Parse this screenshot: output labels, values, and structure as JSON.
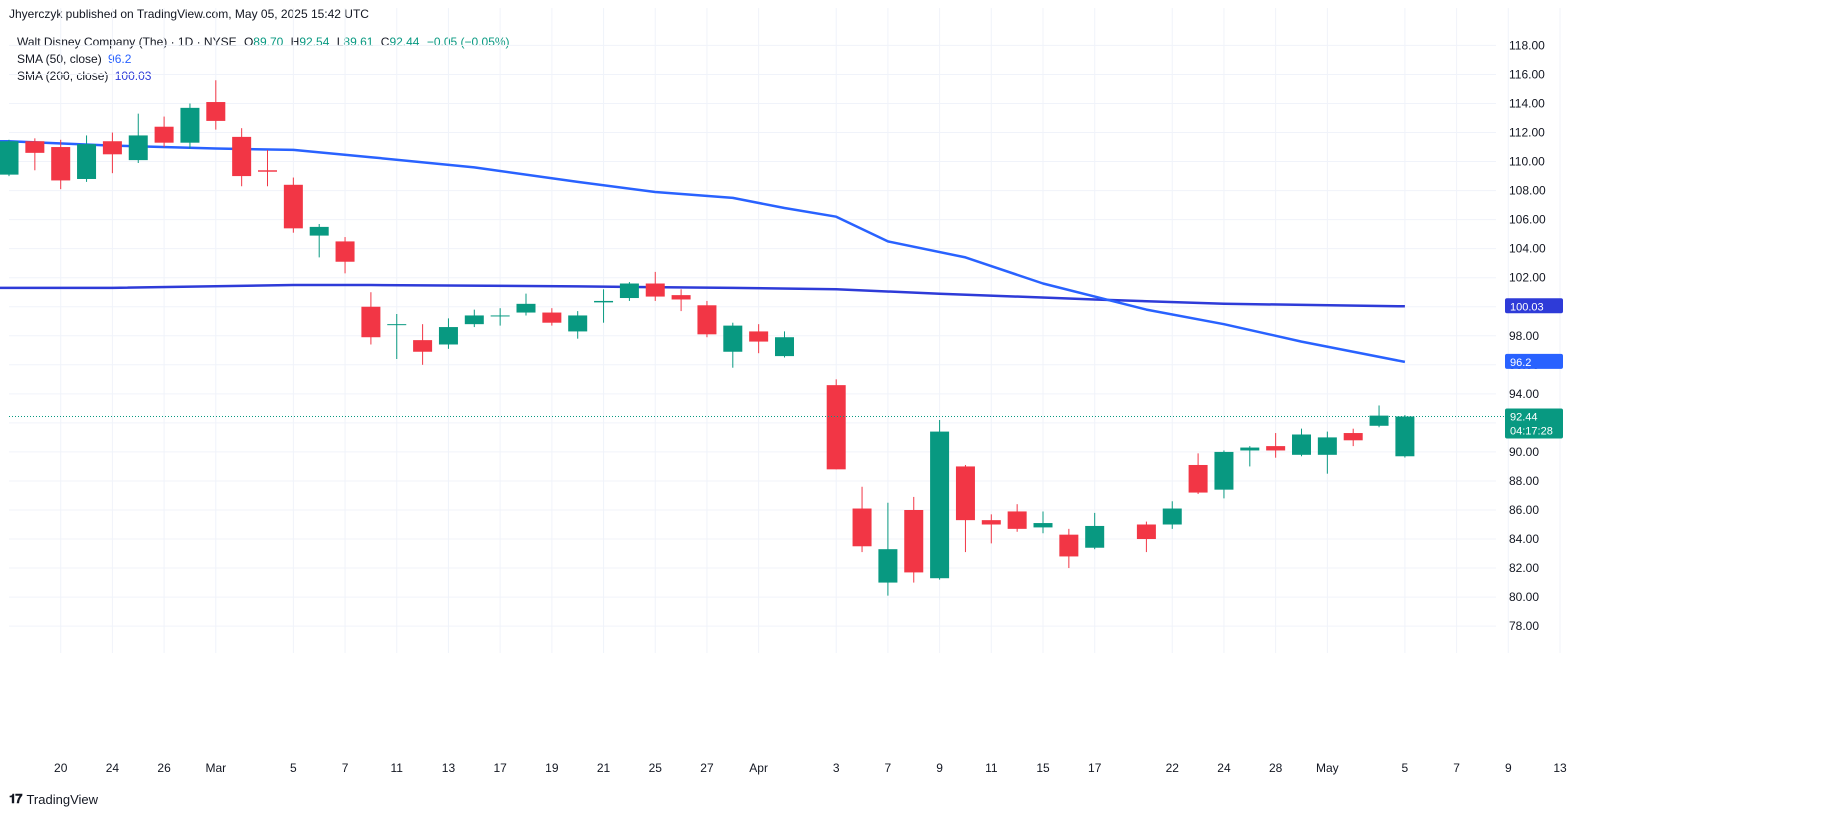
{
  "header": {
    "published_by": "Jhyerczyk published on TradingView.com, May 05, 2025 15:42 UTC"
  },
  "legend": {
    "symbol": "Walt Disney Company (The) · 1D · NYSE",
    "open_label": "O",
    "open": "89.70",
    "high_label": "H",
    "high": "92.54",
    "low_label": "L",
    "low": "89.61",
    "close_label": "C",
    "close": "92.44",
    "change": "−0.05 (−0.05%)",
    "sma50_label": "SMA (50, close)",
    "sma50_value": "96.2",
    "sma200_label": "SMA (200, close)",
    "sma200_value": "100.03"
  },
  "footer": {
    "brand": "TradingView",
    "brand_icon": "tradingview-logo-icon"
  },
  "colors": {
    "up": "#089981",
    "down": "#f23645",
    "sma50": "#2962ff",
    "sma200": "#2e3bd8",
    "grid": "#f0f3fa"
  },
  "chart_data": {
    "type": "candlestick",
    "title": "Walt Disney Company (The) · 1D · NYSE",
    "ylim": [
      76.7,
      119.2
    ],
    "y_ticks": [
      "78.00",
      "80.00",
      "82.00",
      "84.00",
      "86.00",
      "88.00",
      "90.00",
      "92.00",
      "94.00",
      "96.00",
      "98.00",
      "100.00",
      "102.00",
      "104.00",
      "106.00",
      "108.00",
      "110.00",
      "112.00",
      "114.00",
      "116.00",
      "118.00"
    ],
    "x_ticks": [
      {
        "date": "2025-02-20",
        "label": "20"
      },
      {
        "date": "2025-02-24",
        "label": "24"
      },
      {
        "date": "2025-02-26",
        "label": "26"
      },
      {
        "date": "2025-02-28",
        "label": "Mar"
      },
      {
        "date": "2025-03-05",
        "label": "5"
      },
      {
        "date": "2025-03-07",
        "label": "7"
      },
      {
        "date": "2025-03-11",
        "label": "11"
      },
      {
        "date": "2025-03-13",
        "label": "13"
      },
      {
        "date": "2025-03-17",
        "label": "17"
      },
      {
        "date": "2025-03-19",
        "label": "19"
      },
      {
        "date": "2025-03-21",
        "label": "21"
      },
      {
        "date": "2025-03-25",
        "label": "25"
      },
      {
        "date": "2025-03-27",
        "label": "27"
      },
      {
        "date": "2025-03-31",
        "label": "Apr"
      },
      {
        "date": "2025-04-03",
        "label": "3"
      },
      {
        "date": "2025-04-07",
        "label": "7"
      },
      {
        "date": "2025-04-09",
        "label": "9"
      },
      {
        "date": "2025-04-11",
        "label": "11"
      },
      {
        "date": "2025-04-15",
        "label": "15"
      },
      {
        "date": "2025-04-17",
        "label": "17"
      },
      {
        "date": "2025-04-22",
        "label": "22"
      },
      {
        "date": "2025-04-24",
        "label": "24"
      },
      {
        "date": "2025-04-28",
        "label": "28"
      },
      {
        "date": "2025-04-30",
        "label": "May"
      },
      {
        "date": "2025-05-05",
        "label": "5"
      },
      {
        "date": "2025-05-07",
        "label": "7"
      },
      {
        "date": "2025-05-09",
        "label": "9"
      },
      {
        "date": "2025-05-13",
        "label": "13"
      }
    ],
    "candles": [
      {
        "date": "2025-02-18",
        "o": 109.1,
        "h": 111.5,
        "l": 109.0,
        "c": 111.4
      },
      {
        "date": "2025-02-19",
        "o": 111.4,
        "h": 111.6,
        "l": 109.4,
        "c": 110.6
      },
      {
        "date": "2025-02-20",
        "o": 111.0,
        "h": 111.5,
        "l": 108.1,
        "c": 108.7
      },
      {
        "date": "2025-02-21",
        "o": 108.8,
        "h": 111.8,
        "l": 108.6,
        "c": 111.2
      },
      {
        "date": "2025-02-24",
        "o": 111.4,
        "h": 112.0,
        "l": 109.2,
        "c": 110.5
      },
      {
        "date": "2025-02-25",
        "o": 110.1,
        "h": 113.3,
        "l": 109.9,
        "c": 111.8
      },
      {
        "date": "2025-02-26",
        "o": 112.4,
        "h": 113.1,
        "l": 111.0,
        "c": 111.3
      },
      {
        "date": "2025-02-27",
        "o": 111.3,
        "h": 114.0,
        "l": 110.9,
        "c": 113.7
      },
      {
        "date": "2025-02-28",
        "o": 114.1,
        "h": 115.6,
        "l": 112.2,
        "c": 112.8
      },
      {
        "date": "2025-03-03",
        "o": 111.7,
        "h": 112.3,
        "l": 108.3,
        "c": 109.0
      },
      {
        "date": "2025-03-04",
        "o": 109.4,
        "h": 110.8,
        "l": 108.3,
        "c": 109.3
      },
      {
        "date": "2025-03-05",
        "o": 108.4,
        "h": 108.9,
        "l": 105.1,
        "c": 105.4
      },
      {
        "date": "2025-03-06",
        "o": 104.9,
        "h": 105.7,
        "l": 103.4,
        "c": 105.5
      },
      {
        "date": "2025-03-07",
        "o": 104.5,
        "h": 104.8,
        "l": 102.3,
        "c": 103.1
      },
      {
        "date": "2025-03-10",
        "o": 100.0,
        "h": 101.0,
        "l": 97.4,
        "c": 97.9
      },
      {
        "date": "2025-03-11",
        "o": 98.8,
        "h": 99.5,
        "l": 96.4,
        "c": 98.8
      },
      {
        "date": "2025-03-12",
        "o": 97.7,
        "h": 98.8,
        "l": 96.0,
        "c": 96.9
      },
      {
        "date": "2025-03-13",
        "o": 97.4,
        "h": 99.2,
        "l": 97.1,
        "c": 98.6
      },
      {
        "date": "2025-03-14",
        "o": 98.8,
        "h": 99.8,
        "l": 98.6,
        "c": 99.4
      },
      {
        "date": "2025-03-17",
        "o": 99.4,
        "h": 99.9,
        "l": 98.7,
        "c": 99.4
      },
      {
        "date": "2025-03-18",
        "o": 99.6,
        "h": 100.9,
        "l": 99.4,
        "c": 100.2
      },
      {
        "date": "2025-03-19",
        "o": 99.6,
        "h": 99.9,
        "l": 98.7,
        "c": 98.9
      },
      {
        "date": "2025-03-20",
        "o": 98.3,
        "h": 99.7,
        "l": 97.8,
        "c": 99.4
      },
      {
        "date": "2025-03-21",
        "o": 100.3,
        "h": 101.2,
        "l": 98.9,
        "c": 100.4
      },
      {
        "date": "2025-03-24",
        "o": 100.6,
        "h": 101.7,
        "l": 100.4,
        "c": 101.6
      },
      {
        "date": "2025-03-25",
        "o": 101.6,
        "h": 102.4,
        "l": 100.4,
        "c": 100.7
      },
      {
        "date": "2025-03-26",
        "o": 100.8,
        "h": 101.2,
        "l": 99.7,
        "c": 100.5
      },
      {
        "date": "2025-03-27",
        "o": 100.1,
        "h": 100.4,
        "l": 97.9,
        "c": 98.1
      },
      {
        "date": "2025-03-28",
        "o": 96.9,
        "h": 98.9,
        "l": 95.8,
        "c": 98.7
      },
      {
        "date": "2025-03-31",
        "o": 98.3,
        "h": 98.8,
        "l": 96.8,
        "c": 97.6
      },
      {
        "date": "2025-04-01",
        "o": 96.6,
        "h": 98.3,
        "l": 96.5,
        "c": 97.9
      },
      {
        "date": "2025-04-03",
        "o": 94.6,
        "h": 95.0,
        "l": 88.8,
        "c": 88.8
      },
      {
        "date": "2025-04-04",
        "o": 86.1,
        "h": 87.6,
        "l": 83.1,
        "c": 83.5
      },
      {
        "date": "2025-04-07",
        "o": 81.0,
        "h": 86.5,
        "l": 80.1,
        "c": 83.3
      },
      {
        "date": "2025-04-08",
        "o": 86.0,
        "h": 86.9,
        "l": 81.0,
        "c": 81.7
      },
      {
        "date": "2025-04-09",
        "o": 81.3,
        "h": 92.2,
        "l": 81.2,
        "c": 91.4
      },
      {
        "date": "2025-04-10",
        "o": 89.0,
        "h": 89.1,
        "l": 83.1,
        "c": 85.3
      },
      {
        "date": "2025-04-11",
        "o": 85.3,
        "h": 85.7,
        "l": 83.7,
        "c": 85.0
      },
      {
        "date": "2025-04-14",
        "o": 85.9,
        "h": 86.4,
        "l": 84.5,
        "c": 84.7
      },
      {
        "date": "2025-04-15",
        "o": 84.8,
        "h": 85.9,
        "l": 84.4,
        "c": 85.1
      },
      {
        "date": "2025-04-16",
        "o": 84.3,
        "h": 84.7,
        "l": 82.0,
        "c": 82.8
      },
      {
        "date": "2025-04-17",
        "o": 83.4,
        "h": 85.8,
        "l": 83.3,
        "c": 84.9
      },
      {
        "date": "2025-04-21",
        "o": 85.0,
        "h": 85.2,
        "l": 83.1,
        "c": 84.0
      },
      {
        "date": "2025-04-22",
        "o": 85.0,
        "h": 86.6,
        "l": 84.7,
        "c": 86.1
      },
      {
        "date": "2025-04-23",
        "o": 89.1,
        "h": 89.9,
        "l": 87.1,
        "c": 87.2
      },
      {
        "date": "2025-04-24",
        "o": 87.4,
        "h": 90.1,
        "l": 86.8,
        "c": 90.0
      },
      {
        "date": "2025-04-25",
        "o": 90.1,
        "h": 90.4,
        "l": 89.0,
        "c": 90.3
      },
      {
        "date": "2025-04-28",
        "o": 90.4,
        "h": 91.3,
        "l": 89.6,
        "c": 90.1
      },
      {
        "date": "2025-04-29",
        "o": 89.8,
        "h": 91.6,
        "l": 89.7,
        "c": 91.2
      },
      {
        "date": "2025-04-30",
        "o": 89.8,
        "h": 91.4,
        "l": 88.5,
        "c": 91.0
      },
      {
        "date": "2025-05-01",
        "o": 91.3,
        "h": 91.6,
        "l": 90.4,
        "c": 90.8
      },
      {
        "date": "2025-05-02",
        "o": 91.8,
        "h": 93.2,
        "l": 91.7,
        "c": 92.5
      },
      {
        "date": "2025-05-05",
        "o": 89.7,
        "h": 92.54,
        "l": 89.61,
        "c": 92.44
      }
    ],
    "sma50": [
      {
        "date": "2025-02-18",
        "v": 111.4
      },
      {
        "date": "2025-02-24",
        "v": 111.1
      },
      {
        "date": "2025-02-28",
        "v": 110.9
      },
      {
        "date": "2025-03-05",
        "v": 110.8
      },
      {
        "date": "2025-03-10",
        "v": 110.3
      },
      {
        "date": "2025-03-14",
        "v": 109.6
      },
      {
        "date": "2025-03-20",
        "v": 108.6
      },
      {
        "date": "2025-03-25",
        "v": 107.9
      },
      {
        "date": "2025-03-28",
        "v": 107.5
      },
      {
        "date": "2025-04-01",
        "v": 106.8
      },
      {
        "date": "2025-04-03",
        "v": 106.2
      },
      {
        "date": "2025-04-07",
        "v": 104.5
      },
      {
        "date": "2025-04-10",
        "v": 103.4
      },
      {
        "date": "2025-04-15",
        "v": 101.6
      },
      {
        "date": "2025-04-21",
        "v": 99.8
      },
      {
        "date": "2025-04-24",
        "v": 98.8
      },
      {
        "date": "2025-04-29",
        "v": 97.6
      },
      {
        "date": "2025-05-05",
        "v": 96.2
      }
    ],
    "sma200": [
      {
        "date": "2025-02-18",
        "v": 101.3
      },
      {
        "date": "2025-02-24",
        "v": 101.3
      },
      {
        "date": "2025-03-05",
        "v": 101.5
      },
      {
        "date": "2025-03-10",
        "v": 101.5
      },
      {
        "date": "2025-03-20",
        "v": 101.4
      },
      {
        "date": "2025-03-28",
        "v": 101.3
      },
      {
        "date": "2025-04-03",
        "v": 101.2
      },
      {
        "date": "2025-04-09",
        "v": 100.9
      },
      {
        "date": "2025-04-17",
        "v": 100.5
      },
      {
        "date": "2025-04-24",
        "v": 100.2
      },
      {
        "date": "2025-05-05",
        "v": 100.03
      }
    ],
    "price_badge": {
      "value": "92.44",
      "countdown": "04:17:28"
    },
    "sma50_badge": "96.2",
    "sma200_badge": "100.03"
  }
}
